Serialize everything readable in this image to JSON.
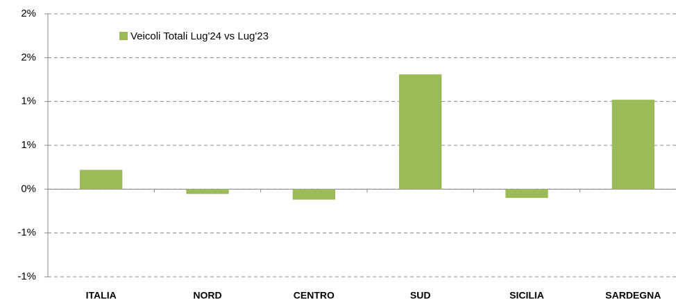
{
  "chart_data": {
    "type": "bar",
    "categories": [
      "ITALIA",
      "NORD",
      "CENTRO",
      "SUD",
      "SICILIA",
      "SARDEGNA"
    ],
    "series": [
      {
        "name": "Veicoli Totali Lug'24 vs Lug'23",
        "color": "#9bbb59",
        "values": [
          0.22,
          -0.055,
          -0.12,
          1.31,
          -0.1,
          1.02
        ]
      }
    ],
    "ylim": [
      -1.0,
      2.0
    ],
    "yticks": [
      {
        "value": -1.0,
        "label": "-1%"
      },
      {
        "value": -0.5,
        "label": "-1%"
      },
      {
        "value": 0,
        "label": "0%"
      },
      {
        "value": 0.5,
        "label": "1%"
      },
      {
        "value": 1.0,
        "label": "1%"
      },
      {
        "value": 1.5,
        "label": "2%"
      },
      {
        "value": 2.0,
        "label": "2%"
      }
    ],
    "grid": true,
    "legend": "top-left"
  }
}
